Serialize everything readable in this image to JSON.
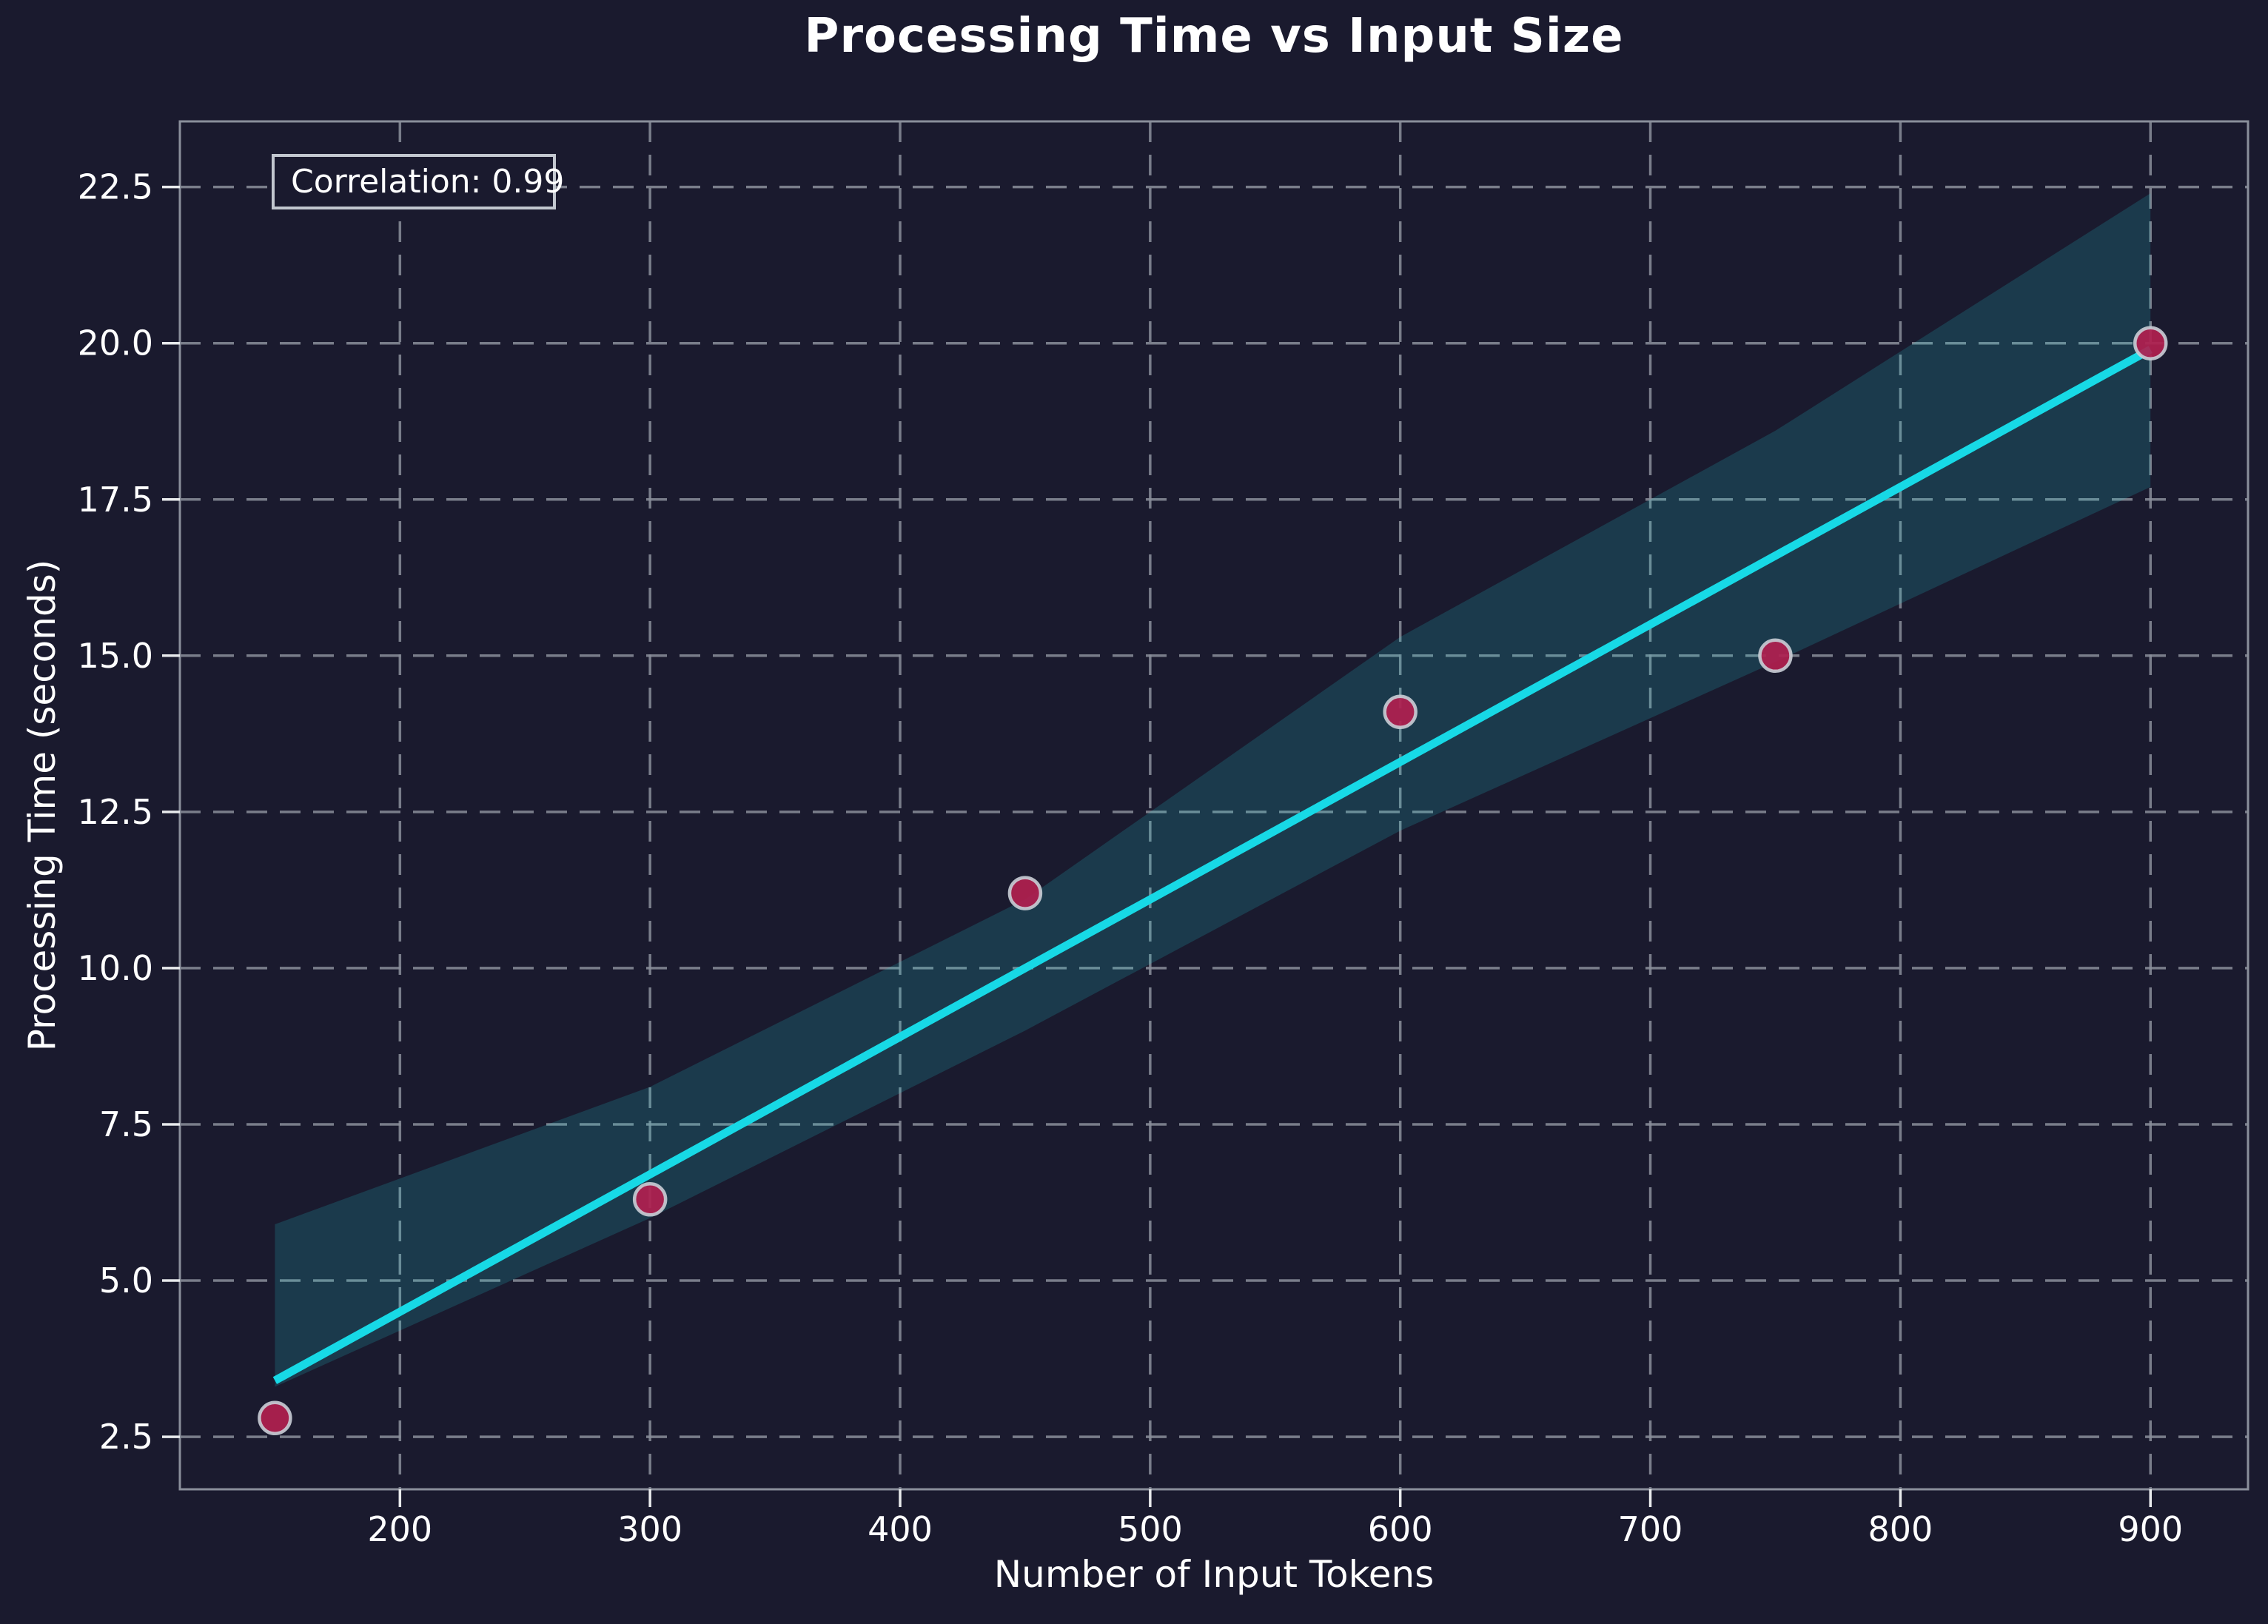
{
  "chart_data": {
    "type": "scatter",
    "title": "Processing Time vs Input Size",
    "xlabel": "Number of Input Tokens",
    "ylabel": "Processing Time (seconds)",
    "annotation": "Correlation: 0.99",
    "grid": true,
    "legend_position": "none",
    "xlim": [
      112,
      939
    ],
    "ylim": [
      1.66,
      23.55
    ],
    "x_ticks": [
      {
        "value": 200,
        "label": "200"
      },
      {
        "value": 300,
        "label": "300"
      },
      {
        "value": 400,
        "label": "400"
      },
      {
        "value": 500,
        "label": "500"
      },
      {
        "value": 600,
        "label": "600"
      },
      {
        "value": 700,
        "label": "700"
      },
      {
        "value": 800,
        "label": "800"
      },
      {
        "value": 900,
        "label": "900"
      }
    ],
    "y_ticks": [
      {
        "value": 2.5,
        "label": "2.5"
      },
      {
        "value": 5.0,
        "label": "5.0"
      },
      {
        "value": 7.5,
        "label": "7.5"
      },
      {
        "value": 10.0,
        "label": "10.0"
      },
      {
        "value": 12.5,
        "label": "12.5"
      },
      {
        "value": 15.0,
        "label": "15.0"
      },
      {
        "value": 17.5,
        "label": "17.5"
      },
      {
        "value": 20.0,
        "label": "20.0"
      },
      {
        "value": 22.5,
        "label": "22.5"
      }
    ],
    "points": [
      {
        "x": 150,
        "y": 2.8
      },
      {
        "x": 300,
        "y": 6.3
      },
      {
        "x": 450,
        "y": 11.2
      },
      {
        "x": 600,
        "y": 14.1
      },
      {
        "x": 750,
        "y": 15.0
      },
      {
        "x": 900,
        "y": 20.0
      }
    ],
    "regression_line": {
      "x": [
        150,
        900
      ],
      "y": [
        3.4,
        19.9
      ]
    },
    "confidence_band": {
      "x": [
        150,
        300,
        450,
        600,
        750,
        900
      ],
      "upper": [
        5.9,
        8.1,
        11.1,
        15.3,
        18.6,
        22.4
      ],
      "lower": [
        3.3,
        6.0,
        9.0,
        12.2,
        14.9,
        17.7
      ]
    },
    "colors": {
      "background": "#1a1a2e",
      "regression_line": "#17d9e6",
      "point_fill": "#b1204f",
      "point_edge": "#c9ced6",
      "band_fill": "#22dde2",
      "band_opacity": 0.17,
      "gridline": "#8a8f9b",
      "spine": "#8a8f9b",
      "tick_mark": "#e8eaec",
      "text": "#ffffff"
    }
  }
}
